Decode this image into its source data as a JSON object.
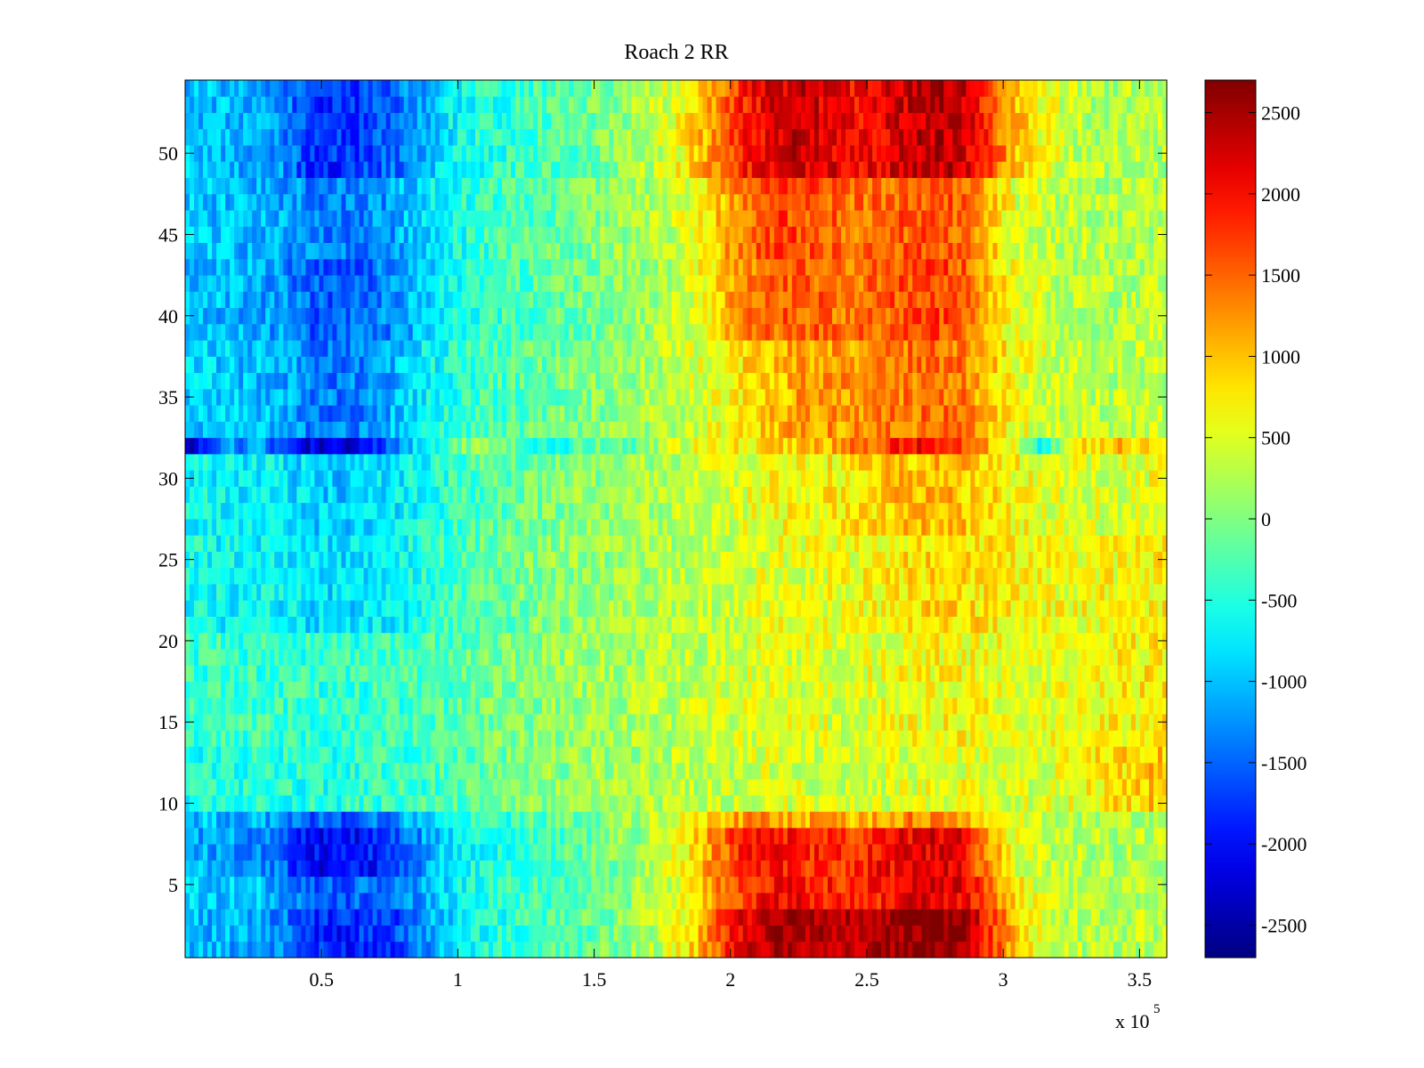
{
  "chart_data": {
    "type": "heatmap",
    "title": "Roach 2 RR",
    "xlabel": "",
    "ylabel": "",
    "x_exponent_label": "x 10",
    "x_exponent_power": "5",
    "xlim": [
      0,
      360000
    ],
    "ylim": [
      0.5,
      54.5
    ],
    "clim": [
      -2700,
      2700
    ],
    "colormap": "jet",
    "grid": false,
    "x_ticks": [
      {
        "value": 50000,
        "label": "0.5"
      },
      {
        "value": 100000,
        "label": "1"
      },
      {
        "value": 150000,
        "label": "1.5"
      },
      {
        "value": 200000,
        "label": "2"
      },
      {
        "value": 250000,
        "label": "2.5"
      },
      {
        "value": 300000,
        "label": "3"
      },
      {
        "value": 350000,
        "label": "3.5"
      }
    ],
    "y_ticks": [
      {
        "value": 5,
        "label": "5"
      },
      {
        "value": 10,
        "label": "10"
      },
      {
        "value": 15,
        "label": "15"
      },
      {
        "value": 20,
        "label": "20"
      },
      {
        "value": 25,
        "label": "25"
      },
      {
        "value": 30,
        "label": "30"
      },
      {
        "value": 35,
        "label": "35"
      },
      {
        "value": 40,
        "label": "40"
      },
      {
        "value": 45,
        "label": "45"
      },
      {
        "value": 50,
        "label": "50"
      }
    ],
    "colorbar_ticks": [
      {
        "value": 2500,
        "label": "2500"
      },
      {
        "value": 2000,
        "label": "2000"
      },
      {
        "value": 1500,
        "label": "1500"
      },
      {
        "value": 1000,
        "label": "1000"
      },
      {
        "value": 500,
        "label": "500"
      },
      {
        "value": 0,
        "label": "0"
      },
      {
        "value": -500,
        "label": "-500"
      },
      {
        "value": -1000,
        "label": "-1000"
      },
      {
        "value": -1500,
        "label": "-1500"
      },
      {
        "value": -2000,
        "label": "-2000"
      },
      {
        "value": -2500,
        "label": "-2500"
      }
    ],
    "column_centers": [
      5000,
      15000,
      25000,
      35000,
      45000,
      55000,
      65000,
      75000,
      85000,
      95000,
      105000,
      115000,
      125000,
      135000,
      145000,
      155000,
      165000,
      175000,
      185000,
      195000,
      205000,
      215000,
      225000,
      235000,
      245000,
      255000,
      265000,
      275000,
      285000,
      295000,
      305000,
      315000,
      325000,
      335000,
      345000,
      355000
    ],
    "row_values": [
      1,
      2,
      3,
      4,
      5,
      6,
      7,
      8,
      9,
      10,
      11,
      12,
      13,
      14,
      15,
      16,
      17,
      18,
      19,
      20,
      21,
      22,
      23,
      24,
      25,
      26,
      27,
      28,
      29,
      30,
      31,
      32,
      33,
      34,
      35,
      36,
      37,
      38,
      39,
      40,
      41,
      42,
      43,
      44,
      45,
      46,
      47,
      48,
      49,
      50,
      51,
      52,
      53,
      54
    ],
    "row_profiles": [
      {
        "rows": [
          1,
          2,
          3
        ],
        "values": [
          -1000,
          -1100,
          -1150,
          -1300,
          -1800,
          -1900,
          -1800,
          -1700,
          -1400,
          -900,
          -600,
          -500,
          -400,
          -300,
          -200,
          -50,
          150,
          350,
          800,
          1500,
          2200,
          2500,
          2500,
          2400,
          2300,
          2400,
          2600,
          2700,
          2600,
          1800,
          900,
          400,
          300,
          250,
          250,
          300
        ]
      },
      {
        "rows": [
          4,
          5
        ],
        "values": [
          -900,
          -950,
          -1000,
          -1100,
          -1500,
          -1600,
          -1500,
          -1400,
          -1200,
          -800,
          -550,
          -450,
          -350,
          -250,
          -150,
          0,
          150,
          350,
          700,
          1300,
          1800,
          2000,
          2000,
          1900,
          1800,
          1900,
          2100,
          2200,
          2100,
          1500,
          800,
          400,
          300,
          250,
          250,
          300
        ]
      },
      {
        "rows": [
          6,
          7,
          8
        ],
        "values": [
          -1100,
          -1200,
          -1250,
          -1400,
          -2000,
          -2100,
          -2000,
          -1800,
          -1300,
          -900,
          -600,
          -500,
          -400,
          -300,
          -200,
          -50,
          100,
          350,
          800,
          1300,
          1900,
          2000,
          1900,
          1800,
          1800,
          2000,
          2100,
          2200,
          2100,
          1200,
          500,
          350,
          300,
          250,
          250,
          300
        ]
      },
      {
        "rows": [
          9
        ],
        "values": [
          -1000,
          -1050,
          -1100,
          -1200,
          -1500,
          -1600,
          -1500,
          -1300,
          -1000,
          -700,
          -500,
          -400,
          -300,
          -200,
          -100,
          0,
          150,
          350,
          700,
          1000,
          1200,
          1200,
          1150,
          1100,
          1100,
          1200,
          1300,
          1300,
          1200,
          800,
          500,
          350,
          300,
          250,
          250,
          300
        ]
      },
      {
        "rows": [
          10,
          11,
          12,
          13
        ],
        "values": [
          -500,
          -500,
          -450,
          -450,
          -500,
          -500,
          -450,
          -400,
          -350,
          -300,
          -200,
          -100,
          0,
          50,
          100,
          150,
          200,
          250,
          300,
          350,
          400,
          450,
          450,
          400,
          400,
          450,
          500,
          550,
          550,
          500,
          450,
          450,
          600,
          750,
          900,
          950
        ]
      },
      {
        "rows": [
          14,
          15,
          16,
          17,
          18,
          19,
          20
        ],
        "values": [
          -400,
          -400,
          -380,
          -380,
          -420,
          -420,
          -400,
          -380,
          -320,
          -260,
          -150,
          -50,
          50,
          100,
          150,
          200,
          250,
          300,
          350,
          400,
          450,
          500,
          500,
          480,
          500,
          550,
          600,
          650,
          650,
          600,
          550,
          550,
          600,
          650,
          700,
          750
        ]
      },
      {
        "rows": [
          21,
          22,
          23,
          24,
          25,
          26
        ],
        "values": [
          -600,
          -650,
          -650,
          -700,
          -800,
          -850,
          -800,
          -700,
          -550,
          -400,
          -250,
          -150,
          -50,
          50,
          100,
          150,
          200,
          250,
          300,
          400,
          450,
          550,
          550,
          550,
          600,
          700,
          800,
          850,
          850,
          750,
          650,
          600,
          600,
          650,
          650,
          700
        ]
      },
      {
        "rows": [
          27,
          28,
          29,
          30,
          31
        ],
        "values": [
          -650,
          -700,
          -700,
          -750,
          -900,
          -950,
          -900,
          -800,
          -600,
          -450,
          -300,
          -200,
          -100,
          0,
          50,
          100,
          150,
          250,
          300,
          400,
          500,
          650,
          700,
          700,
          750,
          900,
          1000,
          1050,
          1000,
          850,
          650,
          550,
          500,
          500,
          500,
          550
        ]
      },
      {
        "rows": [
          32
        ],
        "values": [
          -2200,
          -1300,
          -1200,
          -1500,
          -2200,
          -2300,
          -2000,
          -1600,
          -900,
          -300,
          100,
          200,
          -200,
          -800,
          -300,
          -150,
          -100,
          300,
          500,
          600,
          700,
          800,
          900,
          1000,
          1300,
          1600,
          2000,
          2000,
          1700,
          1000,
          400,
          -700,
          600,
          900,
          1000,
          1000
        ]
      },
      {
        "rows": [
          33,
          34,
          35,
          36,
          37,
          38
        ],
        "values": [
          -900,
          -950,
          -1000,
          -1050,
          -1300,
          -1400,
          -1300,
          -1100,
          -800,
          -550,
          -400,
          -300,
          -200,
          -100,
          0,
          50,
          150,
          250,
          400,
          600,
          800,
          1000,
          1150,
          1200,
          1200,
          1300,
          1400,
          1450,
          1400,
          1000,
          600,
          450,
          350,
          300,
          300,
          350
        ]
      },
      {
        "rows": [
          39,
          40,
          41,
          42,
          43
        ],
        "values": [
          -1000,
          -1050,
          -1100,
          -1200,
          -1500,
          -1600,
          -1500,
          -1300,
          -1000,
          -700,
          -500,
          -400,
          -300,
          -200,
          -100,
          0,
          100,
          250,
          450,
          900,
          1300,
          1500,
          1550,
          1500,
          1400,
          1500,
          1650,
          1700,
          1600,
          1000,
          500,
          400,
          300,
          250,
          250,
          300
        ]
      },
      {
        "rows": [
          44,
          45,
          46,
          47,
          48
        ],
        "values": [
          -950,
          -1000,
          -1050,
          -1100,
          -1300,
          -1400,
          -1300,
          -1200,
          -900,
          -650,
          -450,
          -350,
          -250,
          -150,
          -50,
          50,
          150,
          300,
          500,
          950,
          1400,
          1650,
          1650,
          1550,
          1400,
          1450,
          1550,
          1600,
          1500,
          1000,
          500,
          400,
          300,
          250,
          250,
          300
        ]
      },
      {
        "rows": [
          49,
          50,
          51,
          52,
          53,
          54
        ],
        "values": [
          -1000,
          -1050,
          -1100,
          -1250,
          -1700,
          -1800,
          -1700,
          -1500,
          -1200,
          -800,
          -550,
          -450,
          -350,
          -250,
          -150,
          0,
          200,
          400,
          800,
          1300,
          1900,
          2200,
          2300,
          2200,
          2000,
          2100,
          2300,
          2400,
          2300,
          1700,
          1000,
          600,
          350,
          250,
          250,
          300
        ]
      }
    ]
  }
}
